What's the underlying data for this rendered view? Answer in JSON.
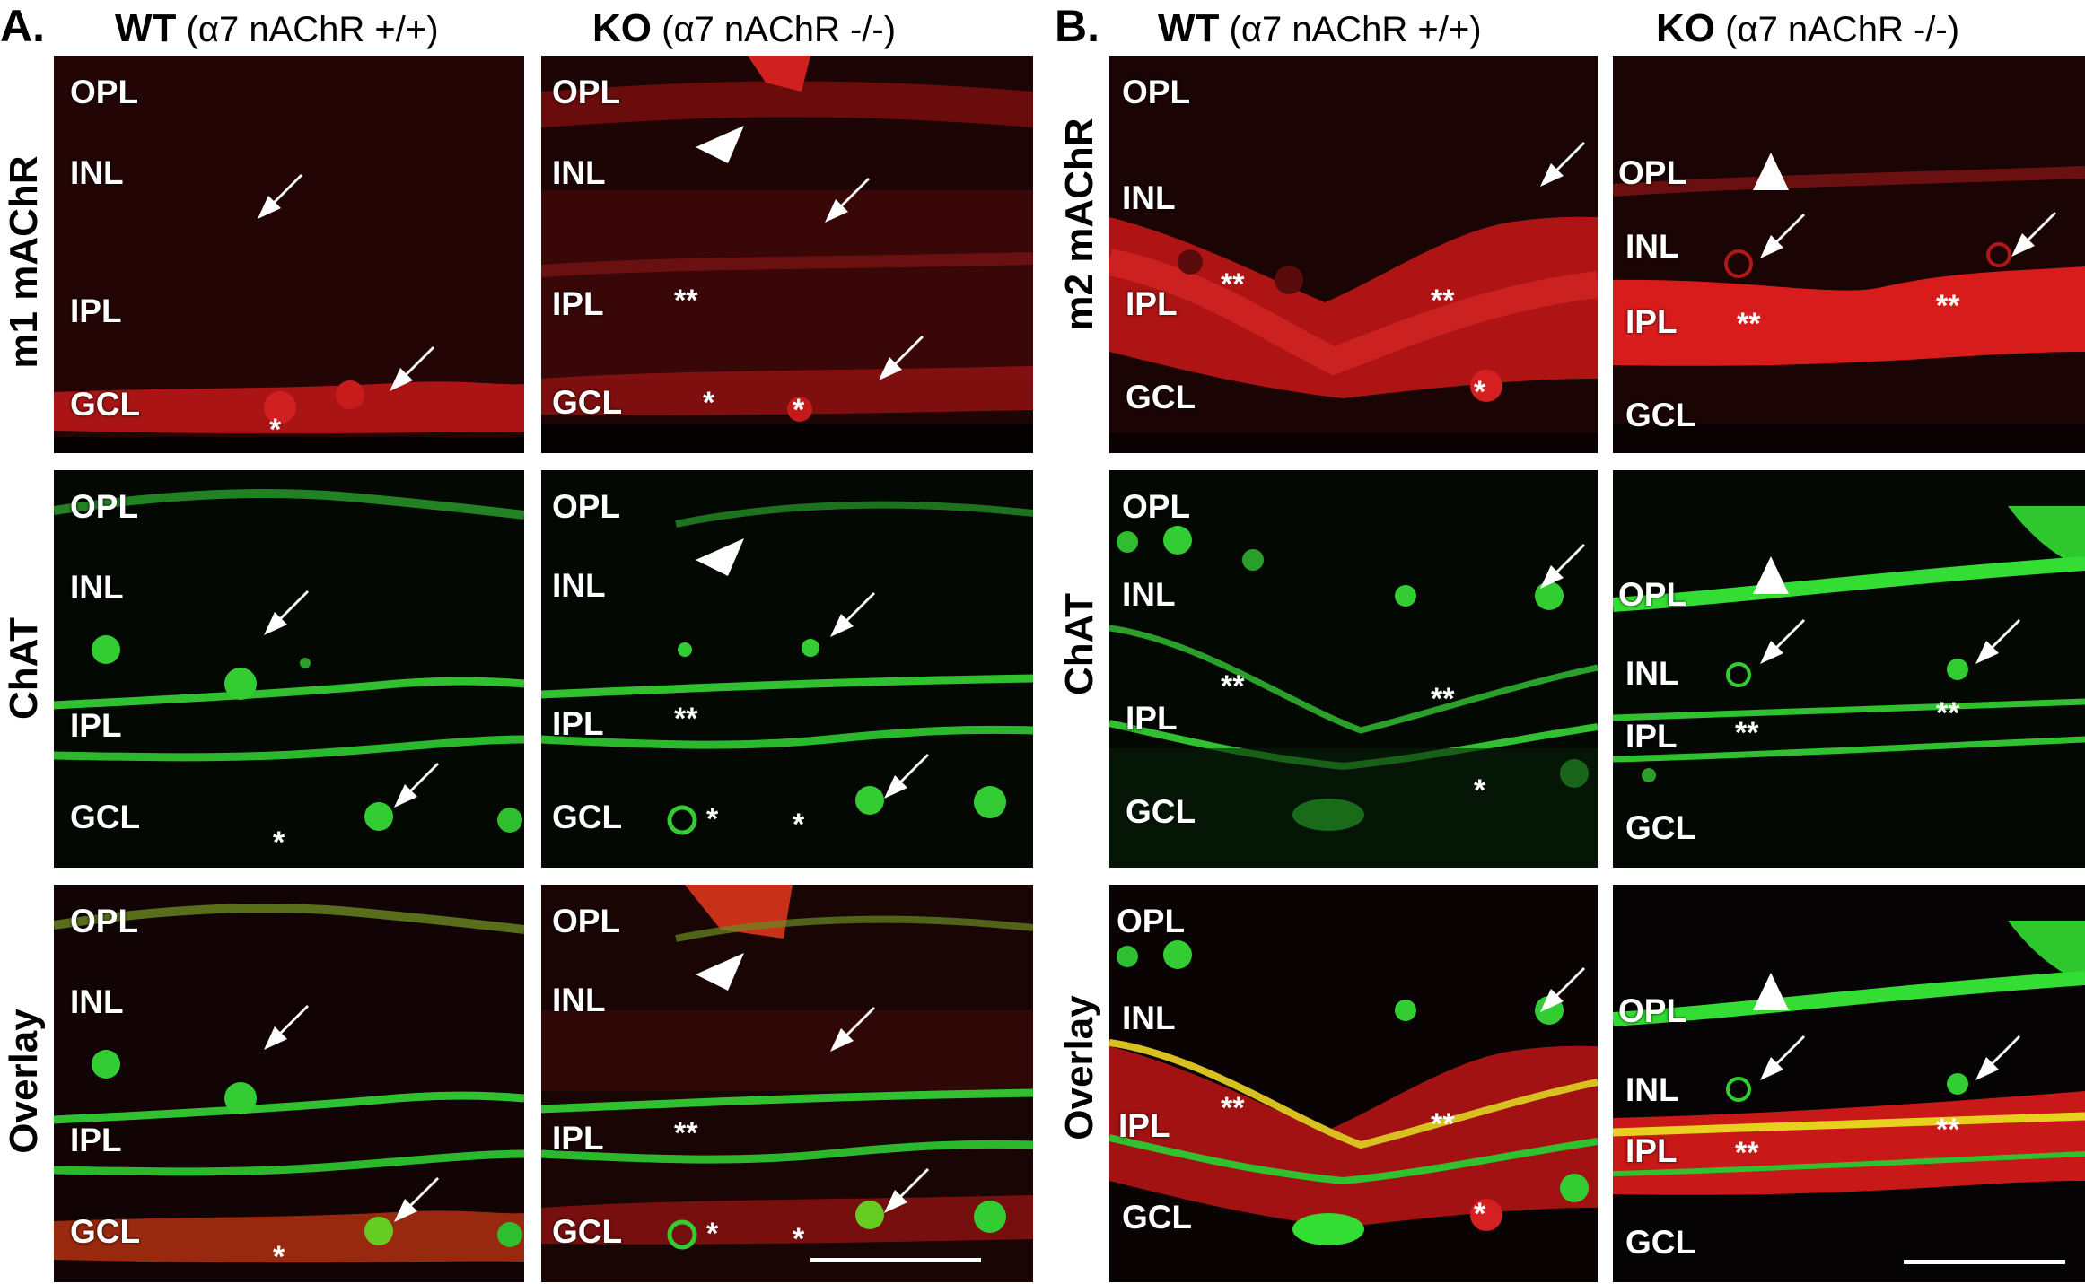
{
  "panels": [
    {
      "letter": "A.",
      "columns": [
        {
          "genotype": "WT",
          "detail": "(α7 nAChR +/+)"
        },
        {
          "genotype": "KO",
          "detail": "(α7 nAChR -/-)"
        }
      ],
      "rows": [
        "m1 mAChR",
        "ChAT",
        "Overlay"
      ]
    },
    {
      "letter": "B.",
      "columns": [
        {
          "genotype": "WT",
          "detail": "(α7 nAChR +/+)"
        },
        {
          "genotype": "KO",
          "detail": "(α7 nAChR -/-)"
        }
      ],
      "rows": [
        "m2 mAChR",
        "ChAT",
        "Overlay"
      ]
    }
  ],
  "layers": {
    "opl": "OPL",
    "inl": "INL",
    "ipl": "IPL",
    "gcl": "GCL"
  },
  "marks": {
    "single": "*",
    "double": "**"
  },
  "colors": {
    "m_achr": "#e01818",
    "chat": "#22cc22",
    "overlay": "#ddcc20",
    "background": "#000000"
  }
}
